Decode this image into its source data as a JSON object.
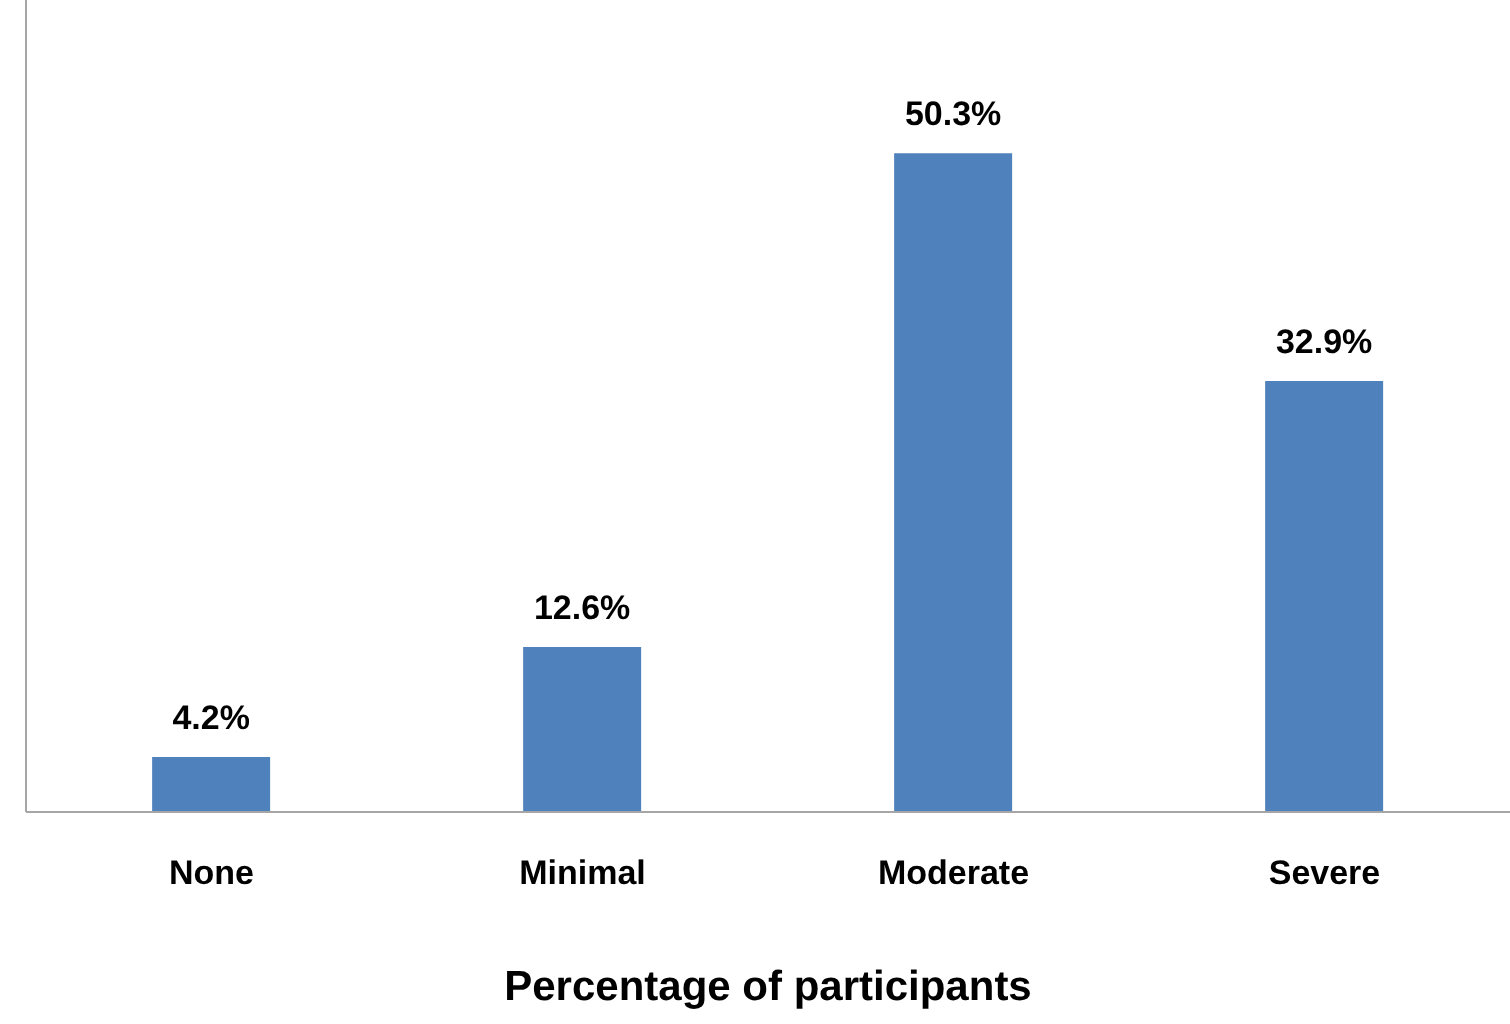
{
  "chart_data": {
    "type": "bar",
    "xlabel": "Percentage of participants",
    "categories": [
      "None",
      "Minimal",
      "Moderate",
      "Severe"
    ],
    "values": [
      4.2,
      12.6,
      50.3,
      32.9
    ],
    "value_labels": [
      "4.2%",
      "12.6%",
      "50.3%",
      "32.9%"
    ],
    "color": "#4f81bd",
    "ylim": [
      0,
      62
    ],
    "tick_labels": "x"
  }
}
